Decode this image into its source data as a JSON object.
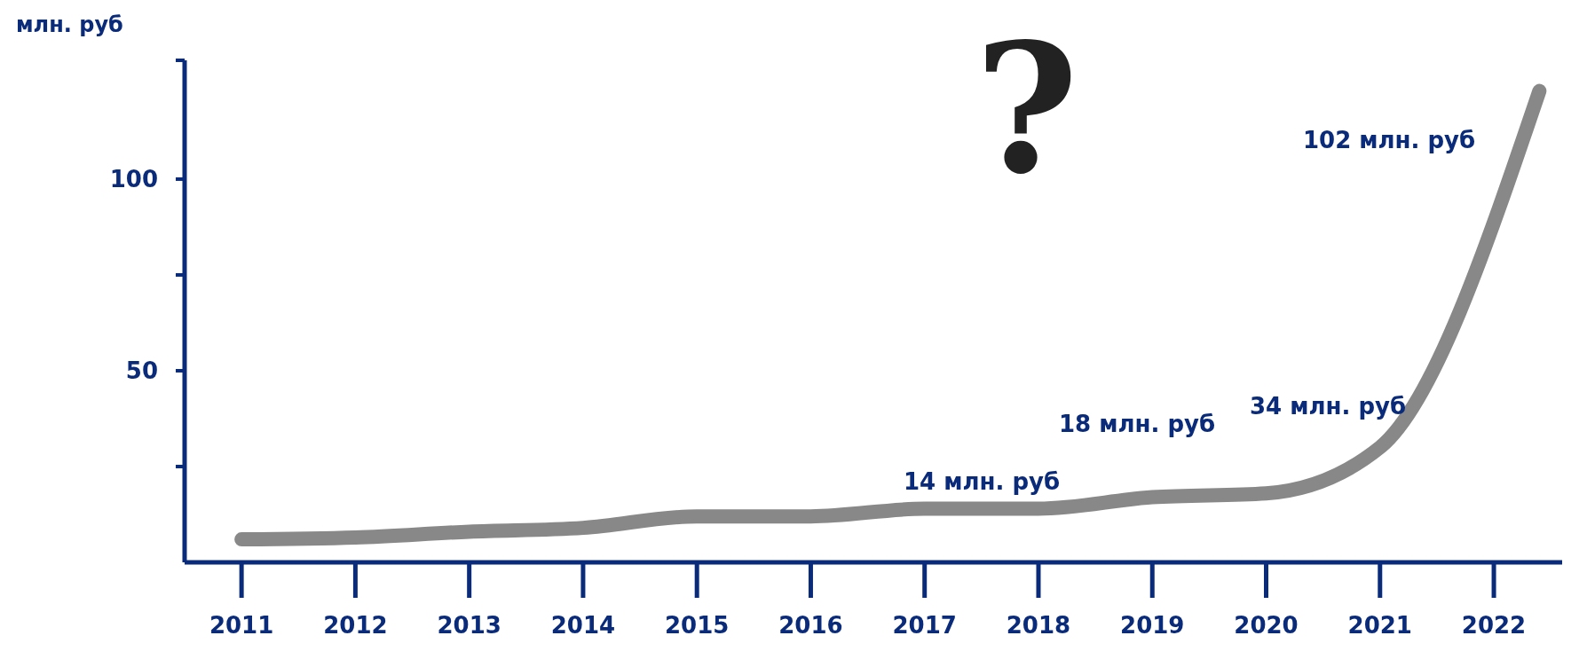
{
  "chart_data": {
    "type": "line",
    "ylabel": "млн. руб",
    "x": [
      2011,
      2012,
      2013,
      2014,
      2015,
      2016,
      2017,
      2018,
      2019,
      2020,
      2021,
      2022.4
    ],
    "series": [
      {
        "color": "#888888",
        "values": [
          6,
          6.5,
          8,
          9,
          12,
          12,
          14,
          14,
          17,
          18,
          30,
          123
        ]
      }
    ],
    "xlim": [
      2010.5,
      2022.6
    ],
    "xticks": [
      2011,
      2012,
      2013,
      2014,
      2015,
      2016,
      2017,
      2018,
      2019,
      2020,
      2021,
      2022
    ],
    "ylim": [
      0,
      131
    ],
    "yticks": [
      {
        "value": 25,
        "label": null
      },
      50,
      {
        "value": 75,
        "label": null
      },
      100,
      {
        "value": 131,
        "label": null
      }
    ],
    "grid": false,
    "legend": false,
    "marker": "none",
    "line_style": "solid",
    "annotations": [
      "?",
      "14 млн. руб",
      "18 млн. руб",
      "34 млн. руб",
      "102 млн. руб"
    ]
  }
}
